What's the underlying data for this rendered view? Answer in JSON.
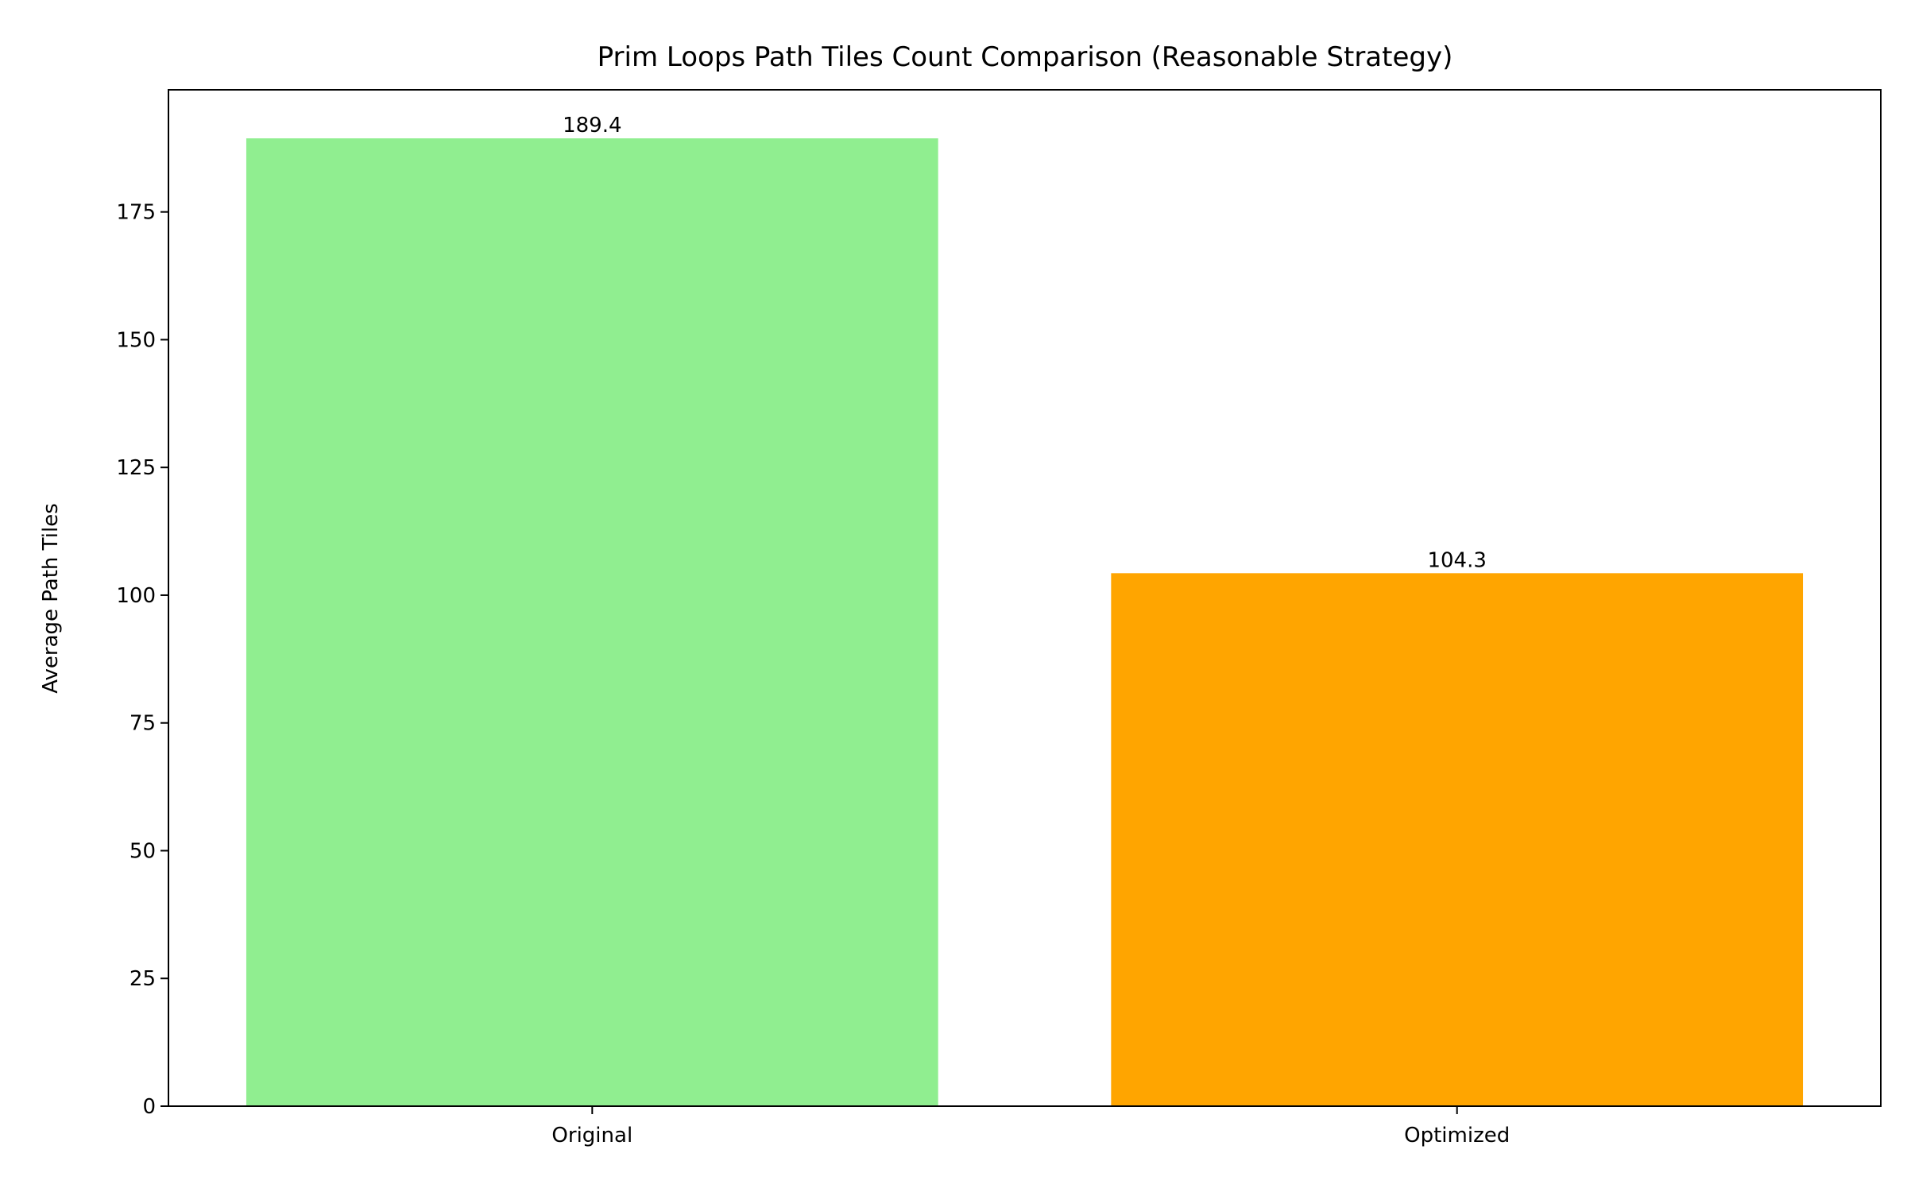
{
  "chart_data": {
    "type": "bar",
    "title": "Prim Loops Path Tiles Count Comparison (Reasonable Strategy)",
    "xlabel": "",
    "ylabel": "Average Path Tiles",
    "categories": [
      "Original",
      "Optimized"
    ],
    "values": [
      189.4,
      104.3
    ],
    "data_labels": [
      "189.4",
      "104.3"
    ],
    "colors": [
      "#90ee90",
      "#ffa500"
    ],
    "ylim": [
      0,
      198.9
    ],
    "yticks": [
      0,
      25,
      50,
      75,
      100,
      125,
      150,
      175
    ],
    "grid": false,
    "legend": "none"
  }
}
